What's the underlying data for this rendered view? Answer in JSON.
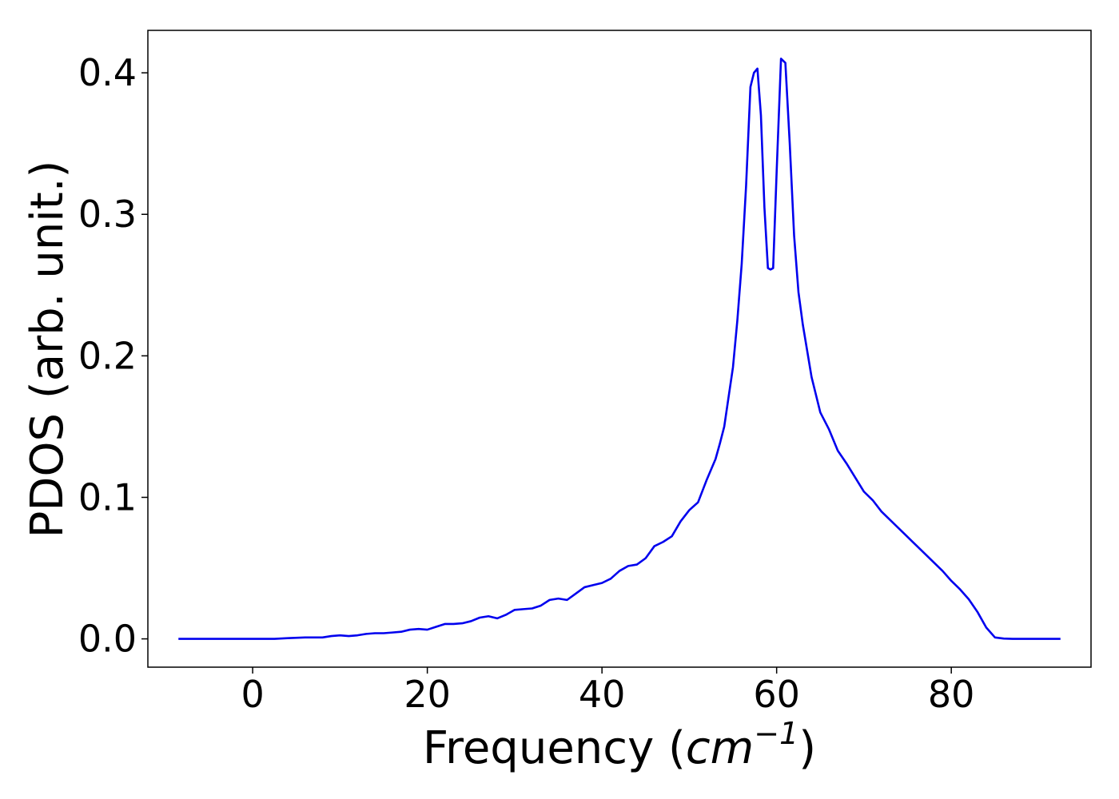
{
  "chart_data": {
    "type": "line",
    "title": "",
    "xlabel_prefix": "Frequency (",
    "xlabel_math_base": "cm",
    "xlabel_math_exponent": "−1",
    "xlabel_suffix": ")",
    "ylabel": "PDOS (arb. unit.)",
    "xlim": [
      -12,
      96
    ],
    "ylim": [
      -0.02,
      0.43
    ],
    "xticks": [
      0,
      20,
      40,
      60,
      80
    ],
    "xtick_labels": [
      "0",
      "20",
      "40",
      "60",
      "80"
    ],
    "yticks": [
      0.0,
      0.1,
      0.2,
      0.3,
      0.4
    ],
    "ytick_labels": [
      "0.0",
      "0.1",
      "0.2",
      "0.3",
      "0.4"
    ],
    "grid": false,
    "series": [
      {
        "color": "#0000ee",
        "x": [
          -8.5,
          0,
          2.5,
          4,
          6,
          8,
          9,
          10,
          11,
          12,
          13,
          14,
          15,
          16,
          17,
          18,
          19,
          20,
          21,
          22,
          23,
          24,
          25,
          26,
          27,
          28,
          29,
          30,
          31,
          32,
          33,
          34,
          35,
          36,
          37,
          38,
          39,
          40,
          41,
          42,
          43,
          44,
          45,
          46,
          47,
          48,
          49,
          50,
          51,
          52,
          53,
          53.5,
          54,
          54.5,
          55,
          55.5,
          56,
          56.5,
          57,
          57.4,
          57.8,
          58.2,
          58.6,
          59.0,
          59.3,
          59.6,
          60.0,
          60.5,
          61.0,
          61.5,
          62.0,
          62.5,
          63,
          64,
          65,
          66,
          67,
          68,
          69,
          70,
          71,
          72,
          73,
          74,
          75,
          76,
          77,
          78,
          79,
          80,
          81,
          82,
          83,
          84,
          85,
          86,
          87,
          88,
          90,
          92.5
        ],
        "y": [
          0.0,
          0.0,
          0.0,
          0.0005,
          0.001,
          0.001,
          0.002,
          0.0025,
          0.002,
          0.0025,
          0.0035,
          0.004,
          0.004,
          0.0045,
          0.005,
          0.0065,
          0.007,
          0.0065,
          0.0085,
          0.0105,
          0.0105,
          0.011,
          0.0125,
          0.015,
          0.016,
          0.0145,
          0.017,
          0.0205,
          0.021,
          0.0215,
          0.0235,
          0.0275,
          0.0285,
          0.0275,
          0.032,
          0.0365,
          0.038,
          0.0395,
          0.0425,
          0.048,
          0.0515,
          0.0525,
          0.057,
          0.0655,
          0.0685,
          0.0725,
          0.083,
          0.091,
          0.0965,
          0.1125,
          0.127,
          0.138,
          0.15,
          0.171,
          0.192,
          0.225,
          0.265,
          0.32,
          0.39,
          0.4,
          0.403,
          0.37,
          0.305,
          0.262,
          0.261,
          0.262,
          0.33,
          0.41,
          0.407,
          0.35,
          0.285,
          0.245,
          0.222,
          0.185,
          0.16,
          0.148,
          0.133,
          0.124,
          0.114,
          0.104,
          0.098,
          0.09,
          0.084,
          0.078,
          0.072,
          0.066,
          0.06,
          0.054,
          0.048,
          0.041,
          0.035,
          0.028,
          0.019,
          0.008,
          0.001,
          0.0002,
          0.0,
          0.0,
          0.0,
          0.0
        ]
      }
    ]
  }
}
